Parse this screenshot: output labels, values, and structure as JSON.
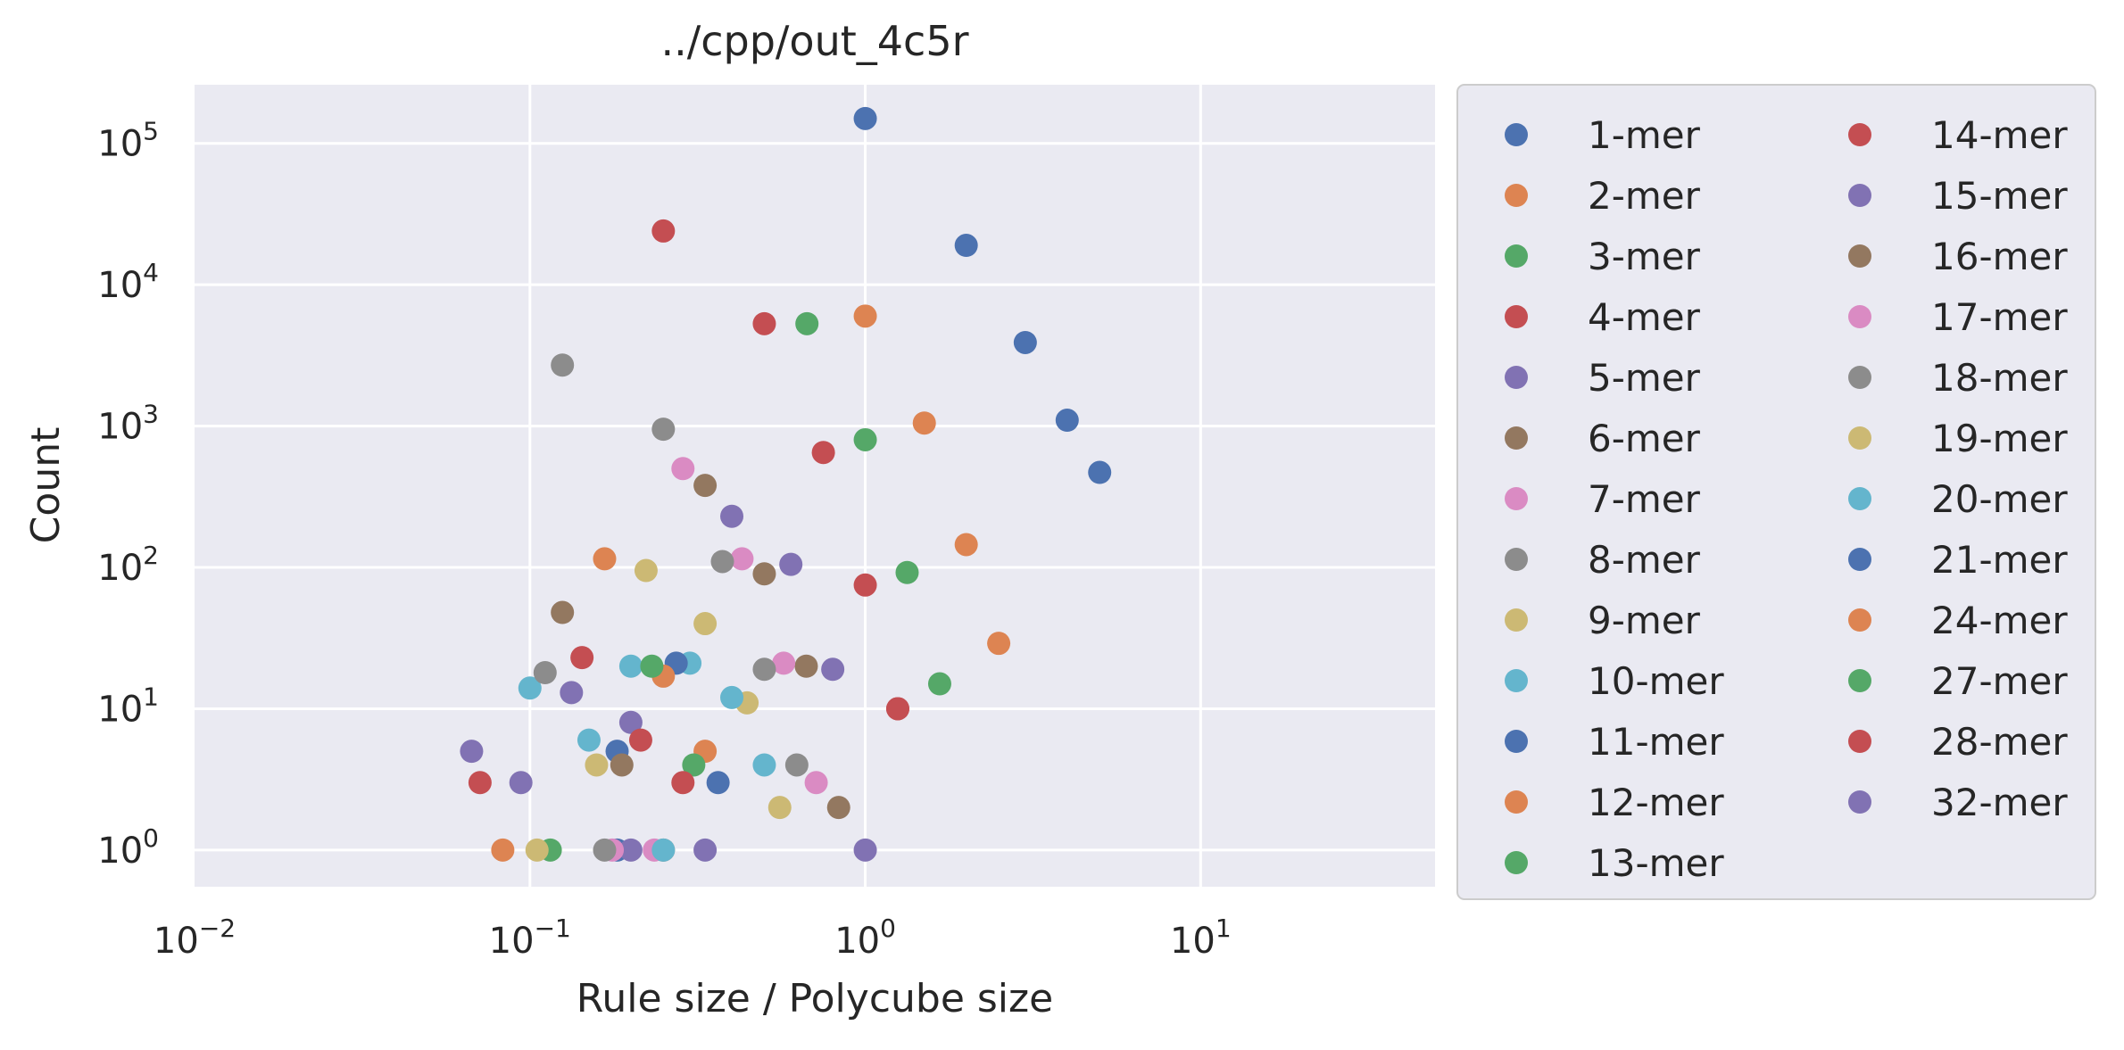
{
  "chart_data": {
    "type": "scatter",
    "title": "../cpp/out_4c5r",
    "xlabel": "Rule size / Polycube size",
    "ylabel": "Count",
    "xscale": "log",
    "yscale": "log",
    "xlim": [
      0.01,
      50
    ],
    "ylim": [
      0.55,
      260000
    ],
    "x_ticks": [
      {
        "base": "10",
        "exp": "−2",
        "value": 0.01
      },
      {
        "base": "10",
        "exp": "−1",
        "value": 0.1
      },
      {
        "base": "10",
        "exp": "0",
        "value": 1
      },
      {
        "base": "10",
        "exp": "1",
        "value": 10
      }
    ],
    "y_ticks": [
      {
        "base": "10",
        "exp": "0",
        "value": 1
      },
      {
        "base": "10",
        "exp": "1",
        "value": 10
      },
      {
        "base": "10",
        "exp": "2",
        "value": 100
      },
      {
        "base": "10",
        "exp": "3",
        "value": 1000
      },
      {
        "base": "10",
        "exp": "4",
        "value": 10000
      },
      {
        "base": "10",
        "exp": "5",
        "value": 100000
      }
    ],
    "grid": true,
    "legend": {
      "placement": "outside-right",
      "columns": 2
    },
    "series": [
      {
        "name": "1-mer",
        "color": "#4c72b0",
        "points": [
          [
            1.0,
            150000
          ]
        ]
      },
      {
        "name": "2-mer",
        "color": "#dd8452",
        "points": [
          [
            1.0,
            6000
          ]
        ]
      },
      {
        "name": "3-mer",
        "color": "#55a868",
        "points": [
          [
            0.67,
            5300
          ],
          [
            1.0,
            800
          ]
        ]
      },
      {
        "name": "4-mer",
        "color": "#c44e52",
        "points": [
          [
            0.25,
            24000
          ],
          [
            0.5,
            5300
          ],
          [
            0.75,
            650
          ],
          [
            1.0,
            75
          ],
          [
            1.25,
            10
          ]
        ]
      },
      {
        "name": "5-mer",
        "color": "#8172b3",
        "points": [
          [
            0.4,
            230
          ],
          [
            0.6,
            105
          ],
          [
            0.8,
            19
          ],
          [
            0.2,
            8
          ],
          [
            1.0,
            1
          ]
        ]
      },
      {
        "name": "6-mer",
        "color": "#937860",
        "points": [
          [
            0.333,
            380
          ],
          [
            0.5,
            90
          ],
          [
            0.667,
            20
          ],
          [
            0.833,
            2
          ],
          [
            0.125,
            48
          ]
        ]
      },
      {
        "name": "7-mer",
        "color": "#da8bc3",
        "points": [
          [
            0.286,
            500
          ],
          [
            0.429,
            115
          ],
          [
            0.571,
            21
          ],
          [
            0.714,
            3
          ]
        ]
      },
      {
        "name": "8-mer",
        "color": "#8c8c8c",
        "points": [
          [
            0.25,
            950
          ],
          [
            0.375,
            110
          ],
          [
            0.5,
            19
          ],
          [
            0.625,
            4
          ],
          [
            0.125,
            2700
          ]
        ]
      },
      {
        "name": "9-mer",
        "color": "#ccb974",
        "points": [
          [
            0.222,
            95
          ],
          [
            0.333,
            40
          ],
          [
            0.444,
            11
          ],
          [
            0.556,
            2
          ]
        ]
      },
      {
        "name": "10-mer",
        "color": "#64b5cd",
        "points": [
          [
            0.2,
            20
          ],
          [
            0.3,
            21
          ],
          [
            0.4,
            12
          ],
          [
            0.5,
            4
          ],
          [
            0.1,
            14
          ]
        ]
      },
      {
        "name": "11-mer",
        "color": "#4c72b0",
        "points": [
          [
            0.182,
            5
          ],
          [
            0.273,
            21
          ],
          [
            0.364,
            3
          ],
          [
            0.182,
            1
          ]
        ]
      },
      {
        "name": "12-mer",
        "color": "#dd8452",
        "points": [
          [
            0.167,
            115
          ],
          [
            0.25,
            17
          ],
          [
            0.333,
            5
          ],
          [
            0.083,
            1
          ]
        ]
      },
      {
        "name": "13-mer",
        "color": "#55a868",
        "points": [
          [
            0.231,
            20
          ],
          [
            0.308,
            4
          ],
          [
            0.115,
            1
          ]
        ]
      },
      {
        "name": "14-mer",
        "color": "#c44e52",
        "points": [
          [
            0.143,
            23
          ],
          [
            0.214,
            6
          ],
          [
            0.286,
            3
          ],
          [
            0.071,
            3
          ]
        ]
      },
      {
        "name": "15-mer",
        "color": "#8172b3",
        "points": [
          [
            0.133,
            13
          ],
          [
            0.2,
            1
          ],
          [
            0.333,
            1
          ],
          [
            0.067,
            5
          ]
        ]
      },
      {
        "name": "16-mer",
        "color": "#937860",
        "points": [
          [
            0.188,
            4
          ],
          [
            0.25,
            1
          ]
        ]
      },
      {
        "name": "17-mer",
        "color": "#da8bc3",
        "points": [
          [
            0.176,
            1
          ],
          [
            0.235,
            1
          ]
        ]
      },
      {
        "name": "18-mer",
        "color": "#8c8c8c",
        "points": [
          [
            0.111,
            18
          ],
          [
            0.167,
            1
          ]
        ]
      },
      {
        "name": "19-mer",
        "color": "#ccb974",
        "points": [
          [
            0.158,
            4
          ],
          [
            0.105,
            1
          ]
        ]
      },
      {
        "name": "20-mer",
        "color": "#64b5cd",
        "points": [
          [
            0.15,
            6
          ],
          [
            0.25,
            1
          ]
        ]
      },
      {
        "name": "21-mer",
        "color": "#4c72b0",
        "points": [
          [
            2.0,
            19000
          ],
          [
            3.0,
            3900
          ],
          [
            4.0,
            1100
          ],
          [
            5.0,
            470
          ]
        ]
      },
      {
        "name": "24-mer",
        "color": "#dd8452",
        "points": [
          [
            1.5,
            1050
          ],
          [
            2.0,
            145
          ],
          [
            2.5,
            29
          ]
        ]
      },
      {
        "name": "27-mer",
        "color": "#55a868",
        "points": [
          [
            1.333,
            92
          ],
          [
            1.667,
            15
          ]
        ]
      },
      {
        "name": "28-mer",
        "color": "#c44e52",
        "points": [
          [
            1.25,
            10
          ]
        ]
      },
      {
        "name": "32-mer",
        "color": "#8172b3",
        "points": [
          [
            0.094,
            3
          ]
        ]
      }
    ]
  }
}
